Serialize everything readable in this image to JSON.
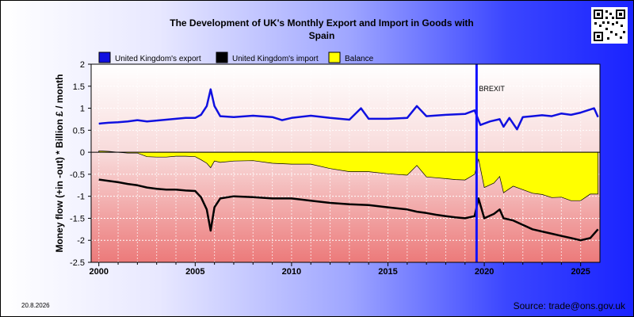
{
  "header": {
    "title_line1": "The Development of UK's Monthly Export and Import in Goods with",
    "title_line2": "Spain"
  },
  "footer": {
    "date": "20.8.2026",
    "source": "Source: trade@ons.gov.uk"
  },
  "colors": {
    "export": "#1010e0",
    "import": "#000000",
    "balance": "#ffff00",
    "brexit_line": "#1010ff"
  },
  "icons": {
    "qr": "qr-code-icon"
  },
  "chart_data": {
    "type": "line",
    "title": "The Development of UK's Monthly Export and Import in Goods with Spain",
    "xlabel": "",
    "ylabel": "Money flow (+in -out) * Billion £ / month",
    "ylim": [
      -2.5,
      2
    ],
    "xlim": [
      1999.6,
      2026.0
    ],
    "yticks": [
      "2",
      "1.5",
      "1",
      "0.5",
      "0",
      "-0.5",
      "-1",
      "-1.5",
      "-2",
      "-2.5"
    ],
    "xticks": [
      "2000",
      "2005",
      "2010",
      "2015",
      "2020",
      "2025"
    ],
    "grid": true,
    "legend_position": "top-left",
    "annotation": {
      "label": "BREXIT",
      "x": 2019.6
    },
    "series": [
      {
        "name": "United Kingdom's export",
        "fill": "none",
        "points": [
          [
            2000,
            0.65
          ],
          [
            2000.5,
            0.67
          ],
          [
            2001,
            0.68
          ],
          [
            2001.5,
            0.7
          ],
          [
            2002,
            0.73
          ],
          [
            2002.5,
            0.7
          ],
          [
            2003,
            0.72
          ],
          [
            2003.5,
            0.74
          ],
          [
            2004,
            0.76
          ],
          [
            2004.5,
            0.78
          ],
          [
            2005,
            0.78
          ],
          [
            2005.3,
            0.85
          ],
          [
            2005.6,
            1.05
          ],
          [
            2005.8,
            1.43
          ],
          [
            2006,
            1.05
          ],
          [
            2006.3,
            0.82
          ],
          [
            2007,
            0.8
          ],
          [
            2008,
            0.83
          ],
          [
            2009,
            0.8
          ],
          [
            2009.5,
            0.73
          ],
          [
            2010,
            0.78
          ],
          [
            2011,
            0.83
          ],
          [
            2012,
            0.78
          ],
          [
            2013,
            0.74
          ],
          [
            2013.6,
            1.0
          ],
          [
            2014,
            0.76
          ],
          [
            2015,
            0.76
          ],
          [
            2016,
            0.78
          ],
          [
            2016.5,
            1.05
          ],
          [
            2017,
            0.82
          ],
          [
            2018,
            0.85
          ],
          [
            2019,
            0.87
          ],
          [
            2019.5,
            0.95
          ],
          [
            2019.8,
            0.62
          ],
          [
            2020.3,
            0.7
          ],
          [
            2020.8,
            0.75
          ],
          [
            2021,
            0.58
          ],
          [
            2021.3,
            0.78
          ],
          [
            2021.7,
            0.52
          ],
          [
            2022,
            0.8
          ],
          [
            2022.5,
            0.82
          ],
          [
            2023,
            0.84
          ],
          [
            2023.5,
            0.82
          ],
          [
            2024,
            0.88
          ],
          [
            2024.5,
            0.85
          ],
          [
            2025,
            0.9
          ],
          [
            2025.7,
            1.0
          ],
          [
            2025.9,
            0.8
          ]
        ]
      },
      {
        "name": "United Kingdom's import",
        "fill": "none",
        "points": [
          [
            2000,
            -0.62
          ],
          [
            2000.5,
            -0.65
          ],
          [
            2001,
            -0.68
          ],
          [
            2001.5,
            -0.72
          ],
          [
            2002,
            -0.75
          ],
          [
            2002.5,
            -0.8
          ],
          [
            2003,
            -0.83
          ],
          [
            2003.5,
            -0.85
          ],
          [
            2004,
            -0.85
          ],
          [
            2004.5,
            -0.87
          ],
          [
            2005,
            -0.88
          ],
          [
            2005.3,
            -1.02
          ],
          [
            2005.6,
            -1.3
          ],
          [
            2005.8,
            -1.78
          ],
          [
            2006,
            -1.25
          ],
          [
            2006.3,
            -1.05
          ],
          [
            2007,
            -1.0
          ],
          [
            2008,
            -1.02
          ],
          [
            2009,
            -1.05
          ],
          [
            2010,
            -1.05
          ],
          [
            2011,
            -1.1
          ],
          [
            2012,
            -1.15
          ],
          [
            2013,
            -1.18
          ],
          [
            2014,
            -1.2
          ],
          [
            2015,
            -1.25
          ],
          [
            2016,
            -1.3
          ],
          [
            2016.5,
            -1.35
          ],
          [
            2017,
            -1.38
          ],
          [
            2017.5,
            -1.42
          ],
          [
            2018,
            -1.45
          ],
          [
            2018.5,
            -1.48
          ],
          [
            2019,
            -1.5
          ],
          [
            2019.5,
            -1.45
          ],
          [
            2019.7,
            -1.05
          ],
          [
            2020,
            -1.5
          ],
          [
            2020.5,
            -1.4
          ],
          [
            2020.8,
            -1.3
          ],
          [
            2021,
            -1.5
          ],
          [
            2021.5,
            -1.55
          ],
          [
            2022,
            -1.65
          ],
          [
            2022.5,
            -1.75
          ],
          [
            2023,
            -1.8
          ],
          [
            2023.5,
            -1.85
          ],
          [
            2024,
            -1.9
          ],
          [
            2024.5,
            -1.95
          ],
          [
            2025,
            -2.0
          ],
          [
            2025.5,
            -1.95
          ],
          [
            2025.9,
            -1.75
          ]
        ]
      },
      {
        "name": "Balance",
        "fill": "area",
        "points": [
          [
            2000,
            0.03
          ],
          [
            2000.5,
            0.02
          ],
          [
            2001,
            0.0
          ],
          [
            2001.5,
            -0.02
          ],
          [
            2002,
            -0.02
          ],
          [
            2002.5,
            -0.1
          ],
          [
            2003,
            -0.11
          ],
          [
            2003.5,
            -0.11
          ],
          [
            2004,
            -0.09
          ],
          [
            2004.5,
            -0.09
          ],
          [
            2005,
            -0.1
          ],
          [
            2005.3,
            -0.17
          ],
          [
            2005.6,
            -0.25
          ],
          [
            2005.8,
            -0.35
          ],
          [
            2006,
            -0.2
          ],
          [
            2006.3,
            -0.23
          ],
          [
            2007,
            -0.2
          ],
          [
            2008,
            -0.19
          ],
          [
            2009,
            -0.25
          ],
          [
            2010,
            -0.27
          ],
          [
            2011,
            -0.27
          ],
          [
            2012,
            -0.37
          ],
          [
            2013,
            -0.44
          ],
          [
            2014,
            -0.44
          ],
          [
            2015,
            -0.49
          ],
          [
            2016,
            -0.52
          ],
          [
            2016.5,
            -0.3
          ],
          [
            2017,
            -0.56
          ],
          [
            2017.5,
            -0.58
          ],
          [
            2018,
            -0.6
          ],
          [
            2018.5,
            -0.62
          ],
          [
            2019,
            -0.63
          ],
          [
            2019.5,
            -0.5
          ],
          [
            2019.7,
            -0.15
          ],
          [
            2020,
            -0.8
          ],
          [
            2020.5,
            -0.7
          ],
          [
            2020.8,
            -0.55
          ],
          [
            2021,
            -0.92
          ],
          [
            2021.5,
            -0.77
          ],
          [
            2022,
            -0.85
          ],
          [
            2022.5,
            -0.93
          ],
          [
            2023,
            -0.96
          ],
          [
            2023.5,
            -1.03
          ],
          [
            2024,
            -1.02
          ],
          [
            2024.5,
            -1.1
          ],
          [
            2025,
            -1.1
          ],
          [
            2025.5,
            -0.95
          ],
          [
            2025.9,
            -0.95
          ]
        ]
      }
    ]
  }
}
